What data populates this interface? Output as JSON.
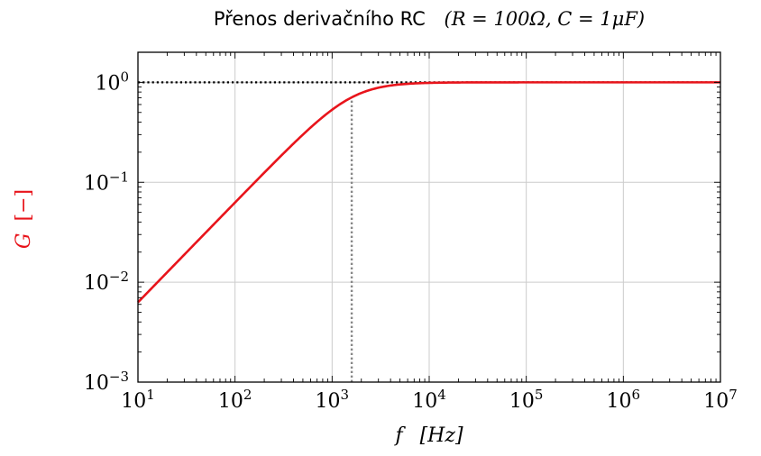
{
  "chart_data": {
    "type": "line",
    "title": {
      "prefix": "Přenos derivačního RC",
      "params": [
        "(R = 100Ω, C = 1μF)"
      ]
    },
    "xlabel": {
      "symbol": "f",
      "unit": "[Hz]"
    },
    "ylabel": {
      "symbol": "G",
      "unit": "[−]"
    },
    "x_scale": "log",
    "y_scale": "log",
    "xlim": [
      10,
      10000000
    ],
    "ylim": [
      0.001,
      2
    ],
    "x_ticks": [
      {
        "base": "10",
        "exp": "1",
        "value": 10
      },
      {
        "base": "10",
        "exp": "2",
        "value": 100
      },
      {
        "base": "10",
        "exp": "3",
        "value": 1000
      },
      {
        "base": "10",
        "exp": "4",
        "value": 10000
      },
      {
        "base": "10",
        "exp": "5",
        "value": 100000
      },
      {
        "base": "10",
        "exp": "6",
        "value": 1000000
      },
      {
        "base": "10",
        "exp": "7",
        "value": 10000000
      }
    ],
    "y_ticks": [
      {
        "base": "10",
        "exp": "−3",
        "value": 0.001
      },
      {
        "base": "10",
        "exp": "−2",
        "value": 0.01
      },
      {
        "base": "10",
        "exp": "−1",
        "value": 0.1
      },
      {
        "base": "10",
        "exp": "0",
        "value": 1
      }
    ],
    "grid": true,
    "series": [
      {
        "color": "#e8141b",
        "function": "G(f) = 2πfRC / sqrt(1 + (2πfRC)^2)",
        "R": 100,
        "C": 1e-06,
        "x": [
          10,
          20,
          50,
          100,
          200,
          500,
          1000,
          1592,
          2000,
          5000,
          10000,
          100000,
          1000000,
          10000000
        ],
        "y": [
          0.00628,
          0.01257,
          0.0314,
          0.0627,
          0.1247,
          0.2997,
          0.532,
          0.7071,
          0.7824,
          0.9528,
          0.9877,
          0.9999,
          1.0,
          1.0
        ]
      }
    ],
    "reference_lines": [
      {
        "kind": "horizontal",
        "y": 1,
        "style": "dotted",
        "color": "#000000"
      },
      {
        "kind": "vertical",
        "x": 1592,
        "style": "dotted",
        "color": "#888888"
      }
    ]
  }
}
